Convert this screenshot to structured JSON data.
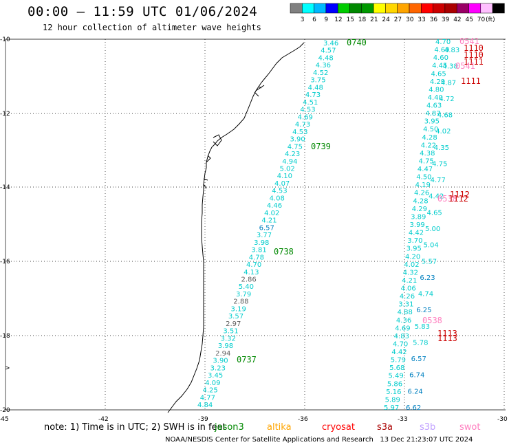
{
  "header": {
    "title": "00:00 – 11:59 UTC 01/06/2024",
    "subtitle": "12 hour collection of altimeter wave heights"
  },
  "colorbar": {
    "colors": [
      "#808080",
      "#00ffff",
      "#00b8ff",
      "#0000ff",
      "#00cc00",
      "#008800",
      "#009900",
      "#ffff00",
      "#ffd700",
      "#ffa500",
      "#ff6600",
      "#ff0000",
      "#cc0000",
      "#aa0000",
      "#990066",
      "#ff00ff",
      "#ffc0ff",
      "#000000"
    ],
    "labels": [
      "3",
      "6",
      "9",
      "12",
      "15",
      "18",
      "21",
      "24",
      "27",
      "30",
      "33",
      "36",
      "39",
      "42",
      "45",
      "70",
      "(ft)"
    ]
  },
  "axes": {
    "lat_labels": [
      "-10",
      "-12",
      "-14",
      "-16",
      "-18",
      "-20"
    ],
    "lon_labels": [
      "-45",
      "-42",
      "-39",
      "-36",
      "-33",
      "-30"
    ]
  },
  "passes": [
    {
      "time": "0740",
      "color": "#008800"
    },
    {
      "time": "0739",
      "color": "#008800"
    },
    {
      "time": "0738",
      "color": "#008800"
    },
    {
      "time": "0737",
      "color": "#008800"
    }
  ],
  "west_track_values": [
    "3.46",
    "4.57",
    "4.48",
    "4.36",
    "4.52",
    "3.75",
    "4.48",
    "4.73",
    "4.51",
    "4.53",
    "4.69",
    "4.73",
    "4.53",
    "3.90",
    "4.75",
    "4.23",
    "4.94",
    "5.02",
    "4.10",
    "4.07",
    "4.53",
    "4.08",
    "4.46",
    "4.02",
    "4.21",
    "6.57",
    "3.77",
    "3.98",
    "3.81",
    "4.78",
    "4.70",
    "4.13",
    "2.86",
    "5.40",
    "3.79",
    "2.88",
    "3.19",
    "3.57",
    "2.97",
    "3.51",
    "3.32",
    "3.98",
    "2.94",
    "3.90",
    "3.23",
    "3.45",
    "4.09",
    "4.25",
    "4.77",
    "4.84"
  ],
  "east_track_values": [
    "4.70",
    "4.69",
    "4.60",
    "4.45",
    "4.65",
    "4.29",
    "4.80",
    "4.40",
    "4.63",
    "4.87",
    "3.95",
    "4.50",
    "4.28",
    "4.22",
    "4.38",
    "4.75",
    "4.47",
    "4.50",
    "4.19",
    "4.26",
    "4.28",
    "4.29",
    "3.89",
    "3.99",
    "4.42",
    "3.70",
    "3.95",
    "4.20",
    "4.02",
    "4.32",
    "4.21",
    "4.06",
    "4.26",
    "3.31",
    "4.88",
    "4.36",
    "4.69",
    "4.83",
    "4.70",
    "4.42",
    "5.79",
    "5.68",
    "5.49",
    "5.86",
    "5.16",
    "5.89",
    "5.97"
  ],
  "east_track2_values": [
    "4.83",
    "4.38",
    "4.87",
    "4.72",
    "4.68",
    "4.02",
    "4.35",
    "4.75",
    "4.77",
    "4.42",
    "4.65",
    "5.00",
    "5.04",
    "5.57",
    "6.23",
    "4.74",
    "6.25",
    "5.83",
    "5.78",
    "6.57",
    "6.74",
    "6.24",
    "6.62"
  ],
  "other_sat_labels": [
    {
      "text": "0541",
      "color": "#ff80c0"
    },
    {
      "text": "1110",
      "color": "#cc0000"
    },
    {
      "text": "1110",
      "color": "#cc0000"
    },
    {
      "text": "1111",
      "color": "#cc0000"
    },
    {
      "text": "0541",
      "color": "#ff80c0"
    },
    {
      "text": "1111",
      "color": "#cc0000"
    },
    {
      "text": "1112",
      "color": "#cc0000"
    },
    {
      "text": "0538",
      "color": "#ff80c0"
    },
    {
      "text": "1112",
      "color": "#cc0000"
    },
    {
      "text": "0538",
      "color": "#ff80c0"
    },
    {
      "text": "1113",
      "color": "#cc0000"
    },
    {
      "text": "1113",
      "color": "#cc0000"
    }
  ],
  "legend": {
    "note": "note: 1) Time is in UTC; 2) SWH is in feet",
    "sats": [
      {
        "name": "jason3",
        "color": "#008800"
      },
      {
        "name": "altika",
        "color": "#ffa500"
      },
      {
        "name": "cryosat",
        "color": "#ff0000"
      },
      {
        "name": "s3a",
        "color": "#aa0000"
      },
      {
        "name": "s3b",
        "color": "#c0a0ff"
      },
      {
        "name": "swot",
        "color": "#ff80c0"
      }
    ]
  },
  "footer": {
    "credit": "NOAA/NESDIS Center for Satellite Applications and Research",
    "timestamp": "13 Dec 21:23:07 UTC 2024"
  }
}
